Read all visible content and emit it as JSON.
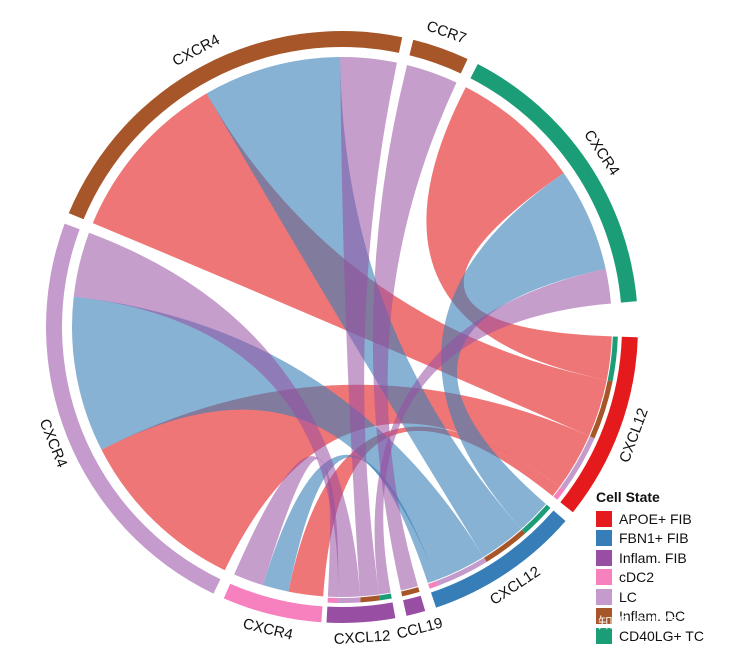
{
  "chart_data": {
    "type": "chord",
    "legend_title": "Cell State",
    "cell_states": [
      {
        "name": "APOE+ FIB",
        "color": "#E41A1C"
      },
      {
        "name": "FBN1+ FIB",
        "color": "#377EB8"
      },
      {
        "name": "Inflam. FIB",
        "color": "#984EA3"
      },
      {
        "name": "cDC2",
        "color": "#F781BF"
      },
      {
        "name": "LC",
        "color": "#C49BCC"
      },
      {
        "name": "Inflam. DC",
        "color": "#A65628"
      },
      {
        "name": "CD40LG+ TC",
        "color": "#1B9E77"
      }
    ],
    "sectors": [
      {
        "label": "CXCL12",
        "cell_state": "APOE+ FIB",
        "role": "ligand"
      },
      {
        "label": "CXCL12",
        "cell_state": "FBN1+ FIB",
        "role": "ligand"
      },
      {
        "label": "CCL19",
        "cell_state": "Inflam. FIB",
        "role": "ligand"
      },
      {
        "label": "CXCL12",
        "cell_state": "Inflam. FIB",
        "role": "ligand"
      },
      {
        "label": "CXCR4",
        "cell_state": "cDC2",
        "role": "receptor"
      },
      {
        "label": "CXCR4",
        "cell_state": "LC",
        "role": "receptor"
      },
      {
        "label": "CXCR4",
        "cell_state": "Inflam. DC",
        "role": "receptor"
      },
      {
        "label": "CCR7",
        "cell_state": "Inflam. DC",
        "role": "receptor"
      },
      {
        "label": "CXCR4",
        "cell_state": "CD40LG+ TC",
        "role": "receptor"
      }
    ],
    "links": [
      {
        "from": "APOE+ FIB",
        "ligand": "CXCL12",
        "to": "CD40LG+ TC",
        "receptor": "CXCR4",
        "weight": 3.0
      },
      {
        "from": "APOE+ FIB",
        "ligand": "CXCL12",
        "to": "Inflam. DC",
        "receptor": "CXCR4",
        "weight": 4.0
      },
      {
        "from": "APOE+ FIB",
        "ligand": "CXCL12",
        "to": "LC",
        "receptor": "CXCR4",
        "weight": 4.0
      },
      {
        "from": "APOE+ FIB",
        "ligand": "CXCL12",
        "to": "cDC2",
        "receptor": "CXCR4",
        "weight": 0.8
      },
      {
        "from": "FBN1+ FIB",
        "ligand": "CXCL12",
        "to": "CD40LG+ TC",
        "receptor": "CXCR4",
        "weight": 2.4
      },
      {
        "from": "FBN1+ FIB",
        "ligand": "CXCL12",
        "to": "Inflam. DC",
        "receptor": "CXCR4",
        "weight": 3.2
      },
      {
        "from": "FBN1+ FIB",
        "ligand": "CXCL12",
        "to": "LC",
        "receptor": "CXCR4",
        "weight": 3.6
      },
      {
        "from": "FBN1+ FIB",
        "ligand": "CXCL12",
        "to": "cDC2",
        "receptor": "CXCR4",
        "weight": 0.6
      },
      {
        "from": "Inflam. FIB",
        "ligand": "CCL19",
        "to": "Inflam. DC",
        "receptor": "CCR7",
        "weight": 1.2
      },
      {
        "from": "Inflam. FIB",
        "ligand": "CXCL12",
        "to": "CD40LG+ TC",
        "receptor": "CXCR4",
        "weight": 0.8
      },
      {
        "from": "Inflam. FIB",
        "ligand": "CXCL12",
        "to": "Inflam. DC",
        "receptor": "CXCR4",
        "weight": 1.3
      },
      {
        "from": "Inflam. FIB",
        "ligand": "CXCL12",
        "to": "LC",
        "receptor": "CXCR4",
        "weight": 1.5
      },
      {
        "from": "Inflam. FIB",
        "ligand": "CXCL12",
        "to": "cDC2",
        "receptor": "CXCR4",
        "weight": 0.7
      }
    ]
  },
  "watermark": "知乎 @毕倬"
}
